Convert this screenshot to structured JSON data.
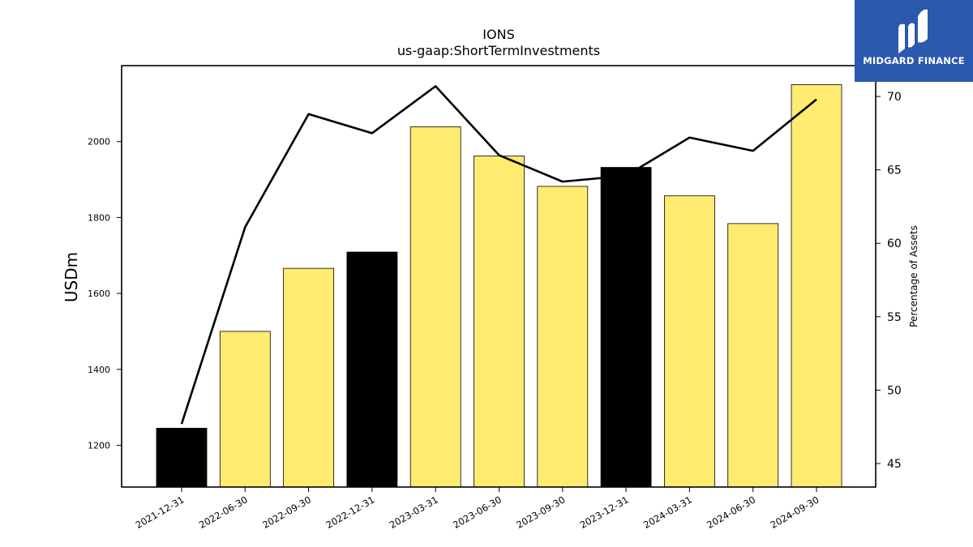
{
  "logo": {
    "text": "MIDGARD FINANCE"
  },
  "colors": {
    "bar_default": "#ffeb70",
    "bar_highlight": "#000000",
    "line": "#000000",
    "logo_bg": "#2a59ad"
  },
  "chart_data": {
    "type": "bar",
    "title": "IONS",
    "subtitle": "us-gaap:ShortTermInvestments",
    "ylabel": "USDm",
    "y2label": "Percentage of Assets",
    "categories": [
      "2021-12-31",
      "2022-06-30",
      "2022-09-30",
      "2022-12-31",
      "2023-03-31",
      "2023-06-30",
      "2023-09-30",
      "2023-12-31",
      "2024-03-31",
      "2024-06-30",
      "2024-09-30"
    ],
    "series": [
      {
        "type": "bar",
        "axis": "left",
        "values": [
          1245,
          1500,
          1666,
          1709,
          2039,
          1962,
          1882,
          1932,
          1857,
          1784,
          2150
        ],
        "highlight": [
          true,
          false,
          false,
          true,
          false,
          false,
          false,
          true,
          false,
          false,
          false
        ]
      },
      {
        "type": "line",
        "axis": "right",
        "values": [
          47.7,
          61.1,
          68.8,
          67.5,
          70.7,
          66.0,
          64.2,
          64.6,
          67.2,
          66.3,
          69.8
        ]
      }
    ],
    "ylim": [
      1090,
      2200
    ],
    "y2lim": [
      43.4,
      72.1
    ],
    "yticks": [
      1200,
      1400,
      1600,
      1800,
      2000
    ],
    "y2ticks": [
      45,
      50,
      55,
      60,
      65,
      70
    ],
    "grid": false,
    "legend": "none"
  }
}
